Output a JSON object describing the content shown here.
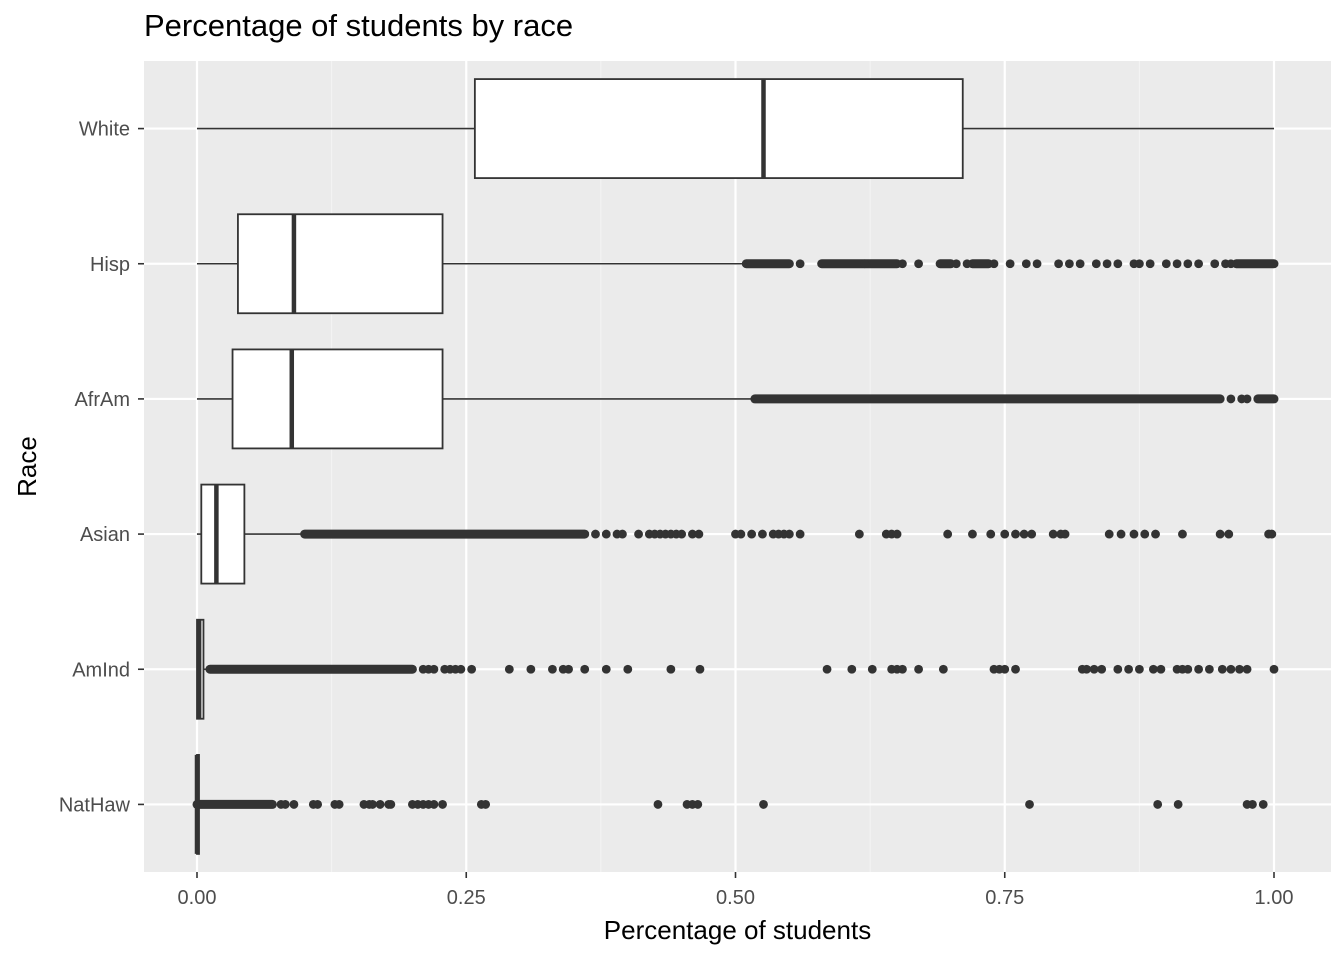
{
  "chart_data": {
    "type": "boxplot",
    "orientation": "horizontal",
    "title": "Percentage of students by race",
    "xlabel": "Percentage of students",
    "ylabel": "Race",
    "xlim": [
      -0.1,
      1.025
    ],
    "x_ticks": [
      0.0,
      0.25,
      0.5,
      0.75,
      1.0
    ],
    "x_tick_labels": [
      "0.00",
      "0.25",
      "0.50",
      "0.75",
      "1.00"
    ],
    "grid": true,
    "legend": "none",
    "colors": {
      "panel_background": "#ebebeb",
      "grid_major": "#ffffff",
      "grid_minor": "#f4f4f4",
      "box_fill": "#ffffff",
      "box_line": "#333333",
      "outlier_point": "#333333",
      "tick_text": "#4d4d4d"
    },
    "categories": [
      "White",
      "Hisp",
      "AfrAm",
      "Asian",
      "AmInd",
      "NatHaw"
    ],
    "series": [
      {
        "category": "White",
        "whisker_low": 0.0,
        "q1": 0.258,
        "median": 0.526,
        "q3": 0.711,
        "whisker_high": 1.0,
        "outliers": [],
        "dense_outlier_ranges": []
      },
      {
        "category": "Hisp",
        "whisker_low": 0.0,
        "q1": 0.038,
        "median": 0.09,
        "q3": 0.228,
        "whisker_high": 0.51,
        "outliers": [
          0.56,
          0.62,
          0.655,
          0.67,
          0.705,
          0.715,
          0.74,
          0.755,
          0.77,
          0.78,
          0.8,
          0.81,
          0.82,
          0.835,
          0.845,
          0.855,
          0.87,
          0.875,
          0.885,
          0.9,
          0.91,
          0.92,
          0.93,
          0.945,
          0.955,
          0.96
        ],
        "dense_outlier_ranges": [
          [
            0.51,
            0.55
          ],
          [
            0.58,
            0.65
          ],
          [
            0.69,
            0.7
          ],
          [
            0.72,
            0.735
          ],
          [
            0.965,
            1.0
          ]
        ]
      },
      {
        "category": "AfrAm",
        "whisker_low": 0.0,
        "q1": 0.033,
        "median": 0.088,
        "q3": 0.228,
        "whisker_high": 0.518,
        "outliers": [
          0.96,
          0.97,
          0.975
        ],
        "dense_outlier_ranges": [
          [
            0.518,
            0.95
          ],
          [
            0.985,
            1.0
          ]
        ]
      },
      {
        "category": "Asian",
        "whisker_low": 0.0,
        "q1": 0.004,
        "median": 0.018,
        "q3": 0.044,
        "whisker_high": 0.1,
        "outliers": [
          0.37,
          0.38,
          0.39,
          0.395,
          0.41,
          0.42,
          0.425,
          0.43,
          0.435,
          0.44,
          0.445,
          0.45,
          0.46,
          0.466,
          0.5,
          0.505,
          0.515,
          0.525,
          0.535,
          0.54,
          0.545,
          0.55,
          0.56,
          0.615,
          0.64,
          0.645,
          0.65,
          0.697,
          0.72,
          0.737,
          0.75,
          0.76,
          0.768,
          0.775,
          0.795,
          0.802,
          0.806,
          0.847,
          0.858,
          0.87,
          0.88,
          0.89,
          0.915,
          0.95,
          0.958,
          0.995,
          0.998
        ],
        "dense_outlier_ranges": [
          [
            0.1,
            0.36
          ]
        ]
      },
      {
        "category": "AmInd",
        "whisker_low": 0.0,
        "q1": 0.0,
        "median": 0.002,
        "q3": 0.006,
        "whisker_high": 0.012,
        "outliers": [
          0.21,
          0.215,
          0.22,
          0.23,
          0.235,
          0.24,
          0.245,
          0.255,
          0.29,
          0.31,
          0.33,
          0.34,
          0.345,
          0.36,
          0.38,
          0.4,
          0.44,
          0.467,
          0.585,
          0.608,
          0.627,
          0.645,
          0.65,
          0.655,
          0.67,
          0.693,
          0.74,
          0.745,
          0.75,
          0.76,
          0.822,
          0.826,
          0.833,
          0.84,
          0.855,
          0.865,
          0.875,
          0.888,
          0.895,
          0.91,
          0.915,
          0.92,
          0.93,
          0.94,
          0.952,
          0.96,
          0.968,
          0.975,
          1.0
        ],
        "dense_outlier_ranges": [
          [
            0.012,
            0.2
          ]
        ]
      },
      {
        "category": "NatHaw",
        "whisker_low": 0.0,
        "q1": 0.0,
        "median": 0.0,
        "q3": 0.0,
        "whisker_high": 0.0,
        "outliers": [
          0.078,
          0.082,
          0.09,
          0.108,
          0.112,
          0.128,
          0.132,
          0.155,
          0.16,
          0.163,
          0.17,
          0.178,
          0.18,
          0.2,
          0.205,
          0.21,
          0.215,
          0.22,
          0.228,
          0.264,
          0.268,
          0.428,
          0.455,
          0.46,
          0.465,
          0.526,
          0.773,
          0.892,
          0.911,
          0.975,
          0.98,
          0.99
        ],
        "dense_outlier_ranges": [
          [
            0.0,
            0.07
          ]
        ]
      }
    ]
  }
}
